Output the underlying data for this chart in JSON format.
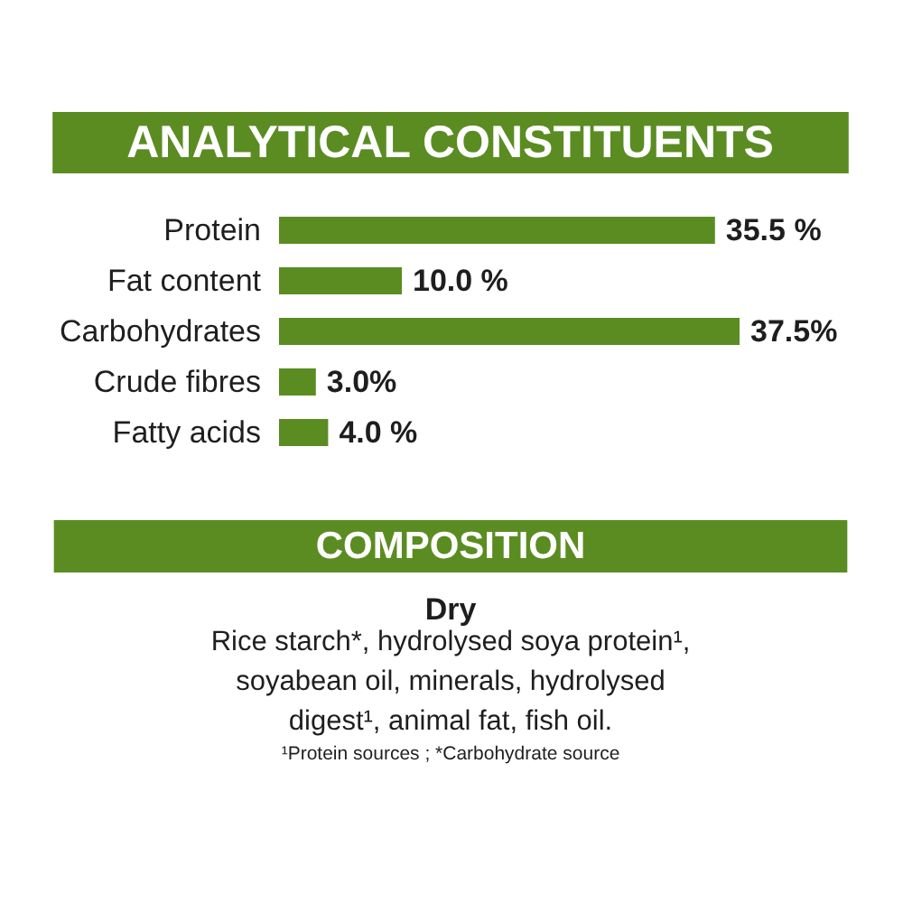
{
  "chart_data": {
    "type": "bar",
    "orientation": "horizontal",
    "title": "ANALYTICAL CONSTITUENTS",
    "categories": [
      "Protein",
      "Fat content",
      "Carbohydrates",
      "Crude fibres",
      "Fatty acids"
    ],
    "values": [
      35.5,
      10.0,
      37.5,
      3.0,
      4.0
    ],
    "value_labels": [
      "35.5 %",
      "10.0 %",
      "37.5%",
      "3.0%",
      "4.0 %"
    ],
    "color": "#5b8c22",
    "tick_labels": "y",
    "annotations": [
      "COMPOSITION",
      "Dry",
      "Rice starch*, hydrolysed soya protein¹, soyabean oil, minerals, hydrolysed digest¹, animal fat, fish oil.",
      "¹Protein sources ; *Carbohydrate source"
    ]
  }
}
